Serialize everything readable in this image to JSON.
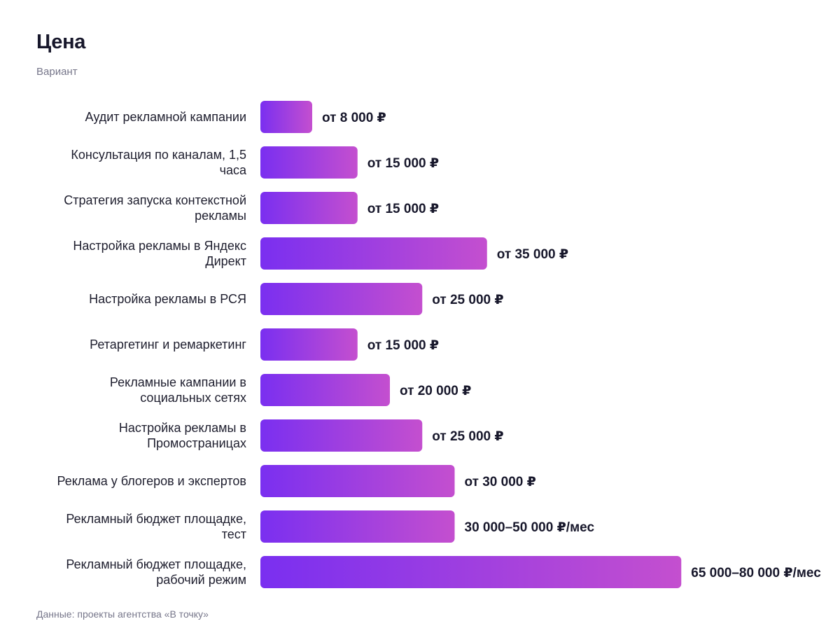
{
  "header": {
    "title": "Цена",
    "subtitle": "Вариант"
  },
  "footer": {
    "source": "Данные: проекты агентства «В точку»"
  },
  "colors": {
    "bar_start": "#7a2ff0",
    "bar_end": "#c44fcf",
    "text": "#1b1b2f",
    "muted": "#76768a"
  },
  "chart_data": {
    "type": "bar",
    "orientation": "horizontal",
    "title": "Цена",
    "subtitle": "Вариант",
    "xlim": [
      0,
      80000
    ],
    "grid": false,
    "legend": "none",
    "categories": [
      "Аудит рекламной кампании",
      "Консультация по каналам, 1,5 часа",
      "Стратегия запуска контекстной рекламы",
      "Настройка рекламы в Яндекс Директ",
      "Настройка рекламы в РСЯ",
      "Ретаргетинг и ремаркетинг",
      "Рекламные кампании в социальных сетях",
      "Настройка рекламы в Промостраницах",
      "Реклама у блогеров и экспертов",
      "Рекламный бюджет площадке, тест",
      "Рекламный бюджет площадке, рабочий режим"
    ],
    "category_lines": [
      [
        "Аудит рекламной кампании"
      ],
      [
        "Консультация по каналам, 1,5",
        "часа"
      ],
      [
        "Стратегия запуска контекстной",
        "рекламы"
      ],
      [
        "Настройка рекламы в Яндекс",
        "Директ"
      ],
      [
        "Настройка рекламы в РСЯ"
      ],
      [
        "Ретаргетинг и ремаркетинг"
      ],
      [
        "Рекламные кампании в",
        "социальных сетях"
      ],
      [
        "Настройка рекламы в",
        "Промостраницах"
      ],
      [
        "Реклама у блогеров и экспертов"
      ],
      [
        "Рекламный бюджет площадке,",
        "тест"
      ],
      [
        "Рекламный бюджет площадке,",
        "рабочий режим"
      ]
    ],
    "values": [
      8000,
      15000,
      15000,
      35000,
      25000,
      15000,
      20000,
      25000,
      30000,
      30000,
      65000
    ],
    "value_labels": [
      "от 8 000 ₽",
      "от 15 000 ₽",
      "от 15 000 ₽",
      "от 35 000 ₽",
      "от 25 000 ₽",
      "от 15 000 ₽",
      "от 20 000 ₽",
      "от 25 000 ₽",
      "от 30 000 ₽",
      "30 000–50 000 ₽/мес",
      "65 000–80 000 ₽/мес"
    ]
  }
}
